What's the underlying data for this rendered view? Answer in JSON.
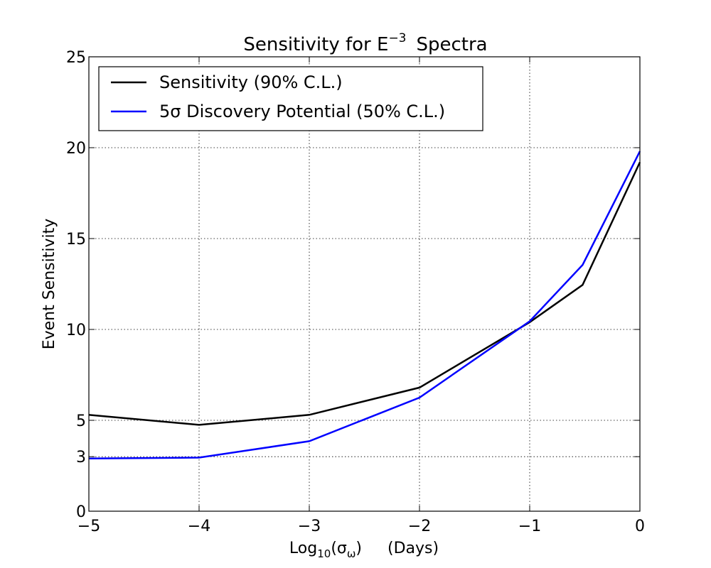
{
  "chart_data": {
    "type": "line",
    "title_main": "Sensitivity for E",
    "title_sup": "−3",
    "title_tail": "Spectra",
    "ylabel": "Event Sensitivity",
    "xlabel_main": "Log",
    "xlabel_sub": "10",
    "xlabel_rest": "(σ",
    "xlabel_sub2": "ω",
    "xlabel_close": ")",
    "xlabel_units": "(Days)",
    "xlim": [
      -5,
      0
    ],
    "ylim": [
      0,
      25
    ],
    "xticks": [
      -5,
      -4,
      -3,
      -2,
      -1,
      0
    ],
    "xtick_labels": [
      "−5",
      "−4",
      "−3",
      "−2",
      "−1",
      "0"
    ],
    "yticks": [
      0,
      3,
      5,
      10,
      15,
      20,
      25
    ],
    "ytick_labels": [
      "0",
      "3",
      "5",
      "10",
      "15",
      "20",
      "25"
    ],
    "grid": true,
    "legend_position": "top-left",
    "series": [
      {
        "name": "Sensitivity (90% C.L.)",
        "color": "#000000",
        "x": [
          -5,
          -4,
          -3,
          -2,
          -1,
          -0.52,
          0
        ],
        "y": [
          5.3,
          4.75,
          5.3,
          6.8,
          10.4,
          12.45,
          19.2
        ]
      },
      {
        "name": "5σ Discovery Potential (50% C.L.)",
        "color": "#0000ff",
        "x": [
          -5,
          -4,
          -3,
          -2,
          -1,
          -0.52,
          0
        ],
        "y": [
          2.9,
          2.95,
          3.85,
          6.25,
          10.45,
          13.55,
          19.8
        ]
      }
    ]
  }
}
